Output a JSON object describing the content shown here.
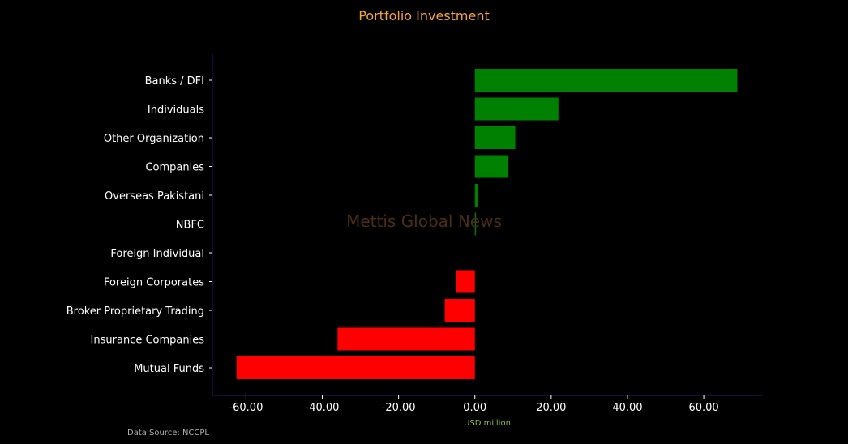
{
  "chart_data": {
    "type": "bar",
    "orientation": "horizontal",
    "title": "Portfolio Investment",
    "xlabel": "USD million",
    "ylabel": "",
    "categories": [
      "Banks / DFI",
      "Individuals",
      "Other Organization",
      "Companies",
      "Overseas Pakistani",
      "NBFC",
      "Foreign Individual",
      "Foreign Corporates ",
      "Broker Proprietary Trading",
      "Insurance Companies",
      "Mutual Funds"
    ],
    "values": [
      68.8,
      21.9,
      10.6,
      8.8,
      0.9,
      0.3,
      0.0,
      -4.9,
      -7.9,
      -36.0,
      -62.5
    ],
    "xlim": [
      -68.8,
      75.5
    ],
    "xticks": [
      -60,
      -40,
      -20,
      0,
      20,
      40,
      60
    ],
    "xtick_labels": [
      "-60.00",
      "-40.00",
      "-20.00",
      "0.00",
      "20.00",
      "40.00",
      "60.00"
    ],
    "grid": false,
    "legend": "none",
    "colors": {
      "positive": "#008000",
      "negative": "#ff0000",
      "title": "#f5a33c",
      "xlabel": "#8fbc3c",
      "spine": "#1f1f7a",
      "text": "#ffffff",
      "source": "#b0b0b0",
      "watermark": "#4a2f16"
    }
  },
  "watermark": "Mettis Global News",
  "source_note": "Data Source: NCCPL"
}
